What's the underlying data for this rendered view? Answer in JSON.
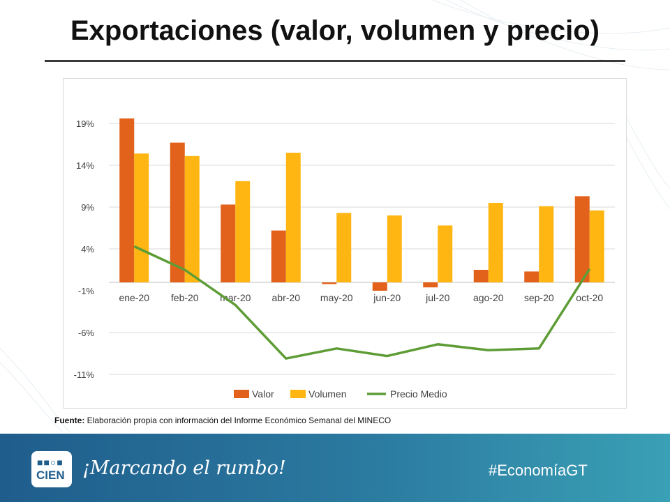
{
  "slide": {
    "title": "Exportaciones (valor, volumen y precio)",
    "source_label": "Fuente:",
    "source_text": " Elaboración propia con información del Informe Económico Semanal del MINECO",
    "footer_slogan": "¡Marcando el rumbo!",
    "footer_hashtag": "#EconomíaGT",
    "logo_text": "CIEN",
    "logo_dots": "■■○■"
  },
  "colors": {
    "valor": "#E2621B",
    "volumen": "#FFB612",
    "precio": "#5E9C36",
    "grid": "#d9d9d9"
  },
  "chart_data": {
    "type": "bar",
    "categories": [
      "ene-20",
      "feb-20",
      "mar-20",
      "abr-20",
      "may-20",
      "jun-20",
      "jul-20",
      "ago-20",
      "sep-20",
      "oct-20"
    ],
    "series": [
      {
        "name": "Valor",
        "kind": "bar",
        "values": [
          19.6,
          16.7,
          9.3,
          6.2,
          -0.2,
          -1.0,
          -0.6,
          1.5,
          1.3,
          10.3
        ]
      },
      {
        "name": "Volumen",
        "kind": "bar",
        "values": [
          15.4,
          15.1,
          12.1,
          15.5,
          8.3,
          8.0,
          6.8,
          9.5,
          9.1,
          8.6
        ]
      },
      {
        "name": "Precio Medio",
        "kind": "line",
        "values": [
          4.3,
          1.5,
          -2.7,
          -9.1,
          -7.9,
          -8.8,
          -7.4,
          -8.1,
          -7.9,
          1.6
        ]
      }
    ],
    "yticks": [
      "19%",
      "14%",
      "9%",
      "4%",
      "-1%",
      "-6%",
      "-11%"
    ],
    "ytick_values": [
      19,
      14,
      9,
      4,
      -1,
      -6,
      -11
    ],
    "ylim": [
      -12,
      20
    ],
    "legend": [
      "Valor",
      "Volumen",
      "Precio Medio"
    ],
    "legend_position": "bottom"
  }
}
